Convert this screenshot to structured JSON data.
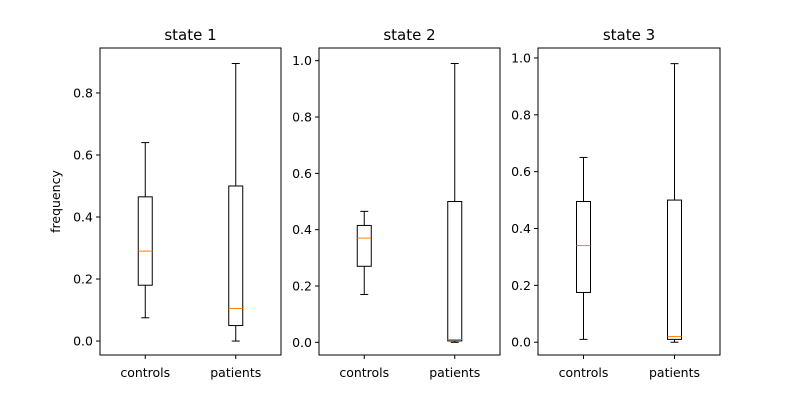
{
  "chart_data": [
    {
      "type": "box",
      "title": "state 1",
      "ylabel": "frequency",
      "categories": [
        "controls",
        "patients"
      ],
      "ylim": [
        -0.045,
        0.945
      ],
      "yticks": [
        0.0,
        0.2,
        0.4,
        0.6,
        0.8
      ],
      "ytick_labels": [
        "0.0",
        "0.2",
        "0.4",
        "0.6",
        "0.8"
      ],
      "boxes": [
        {
          "label": "controls",
          "whislo": 0.075,
          "q1": 0.18,
          "med": 0.29,
          "q3": 0.465,
          "whishi": 0.64
        },
        {
          "label": "patients",
          "whislo": 0.0,
          "q1": 0.05,
          "med": 0.105,
          "q3": 0.5,
          "whishi": 0.895
        }
      ]
    },
    {
      "type": "box",
      "title": "state 2",
      "ylabel": "",
      "categories": [
        "controls",
        "patients"
      ],
      "ylim": [
        -0.045,
        1.045
      ],
      "yticks": [
        0.0,
        0.2,
        0.4,
        0.6,
        0.8,
        1.0
      ],
      "ytick_labels": [
        "0.0",
        "0.2",
        "0.4",
        "0.6",
        "0.8",
        "1.0"
      ],
      "boxes": [
        {
          "label": "controls",
          "whislo": 0.17,
          "q1": 0.27,
          "med": 0.37,
          "q3": 0.415,
          "whishi": 0.465
        },
        {
          "label": "patients",
          "whislo": 0.0,
          "q1": 0.005,
          "med": 0.01,
          "q3": 0.5,
          "whishi": 0.99
        }
      ]
    },
    {
      "type": "box",
      "title": "state 3",
      "ylabel": "",
      "categories": [
        "controls",
        "patients"
      ],
      "ylim": [
        -0.045,
        1.035
      ],
      "yticks": [
        0.0,
        0.2,
        0.4,
        0.6,
        0.8,
        1.0
      ],
      "ytick_labels": [
        "0.0",
        "0.2",
        "0.4",
        "0.6",
        "0.8",
        "1.0"
      ],
      "boxes": [
        {
          "label": "controls",
          "whislo": 0.01,
          "q1": 0.175,
          "med": 0.34,
          "q3": 0.495,
          "whishi": 0.65
        },
        {
          "label": "patients",
          "whislo": 0.0,
          "q1": 0.01,
          "med": 0.02,
          "q3": 0.5,
          "whishi": 0.98
        }
      ]
    }
  ],
  "colors": {
    "box": "#000000",
    "median": "#ff7f0e",
    "axes": "#000000",
    "background": "#ffffff"
  }
}
